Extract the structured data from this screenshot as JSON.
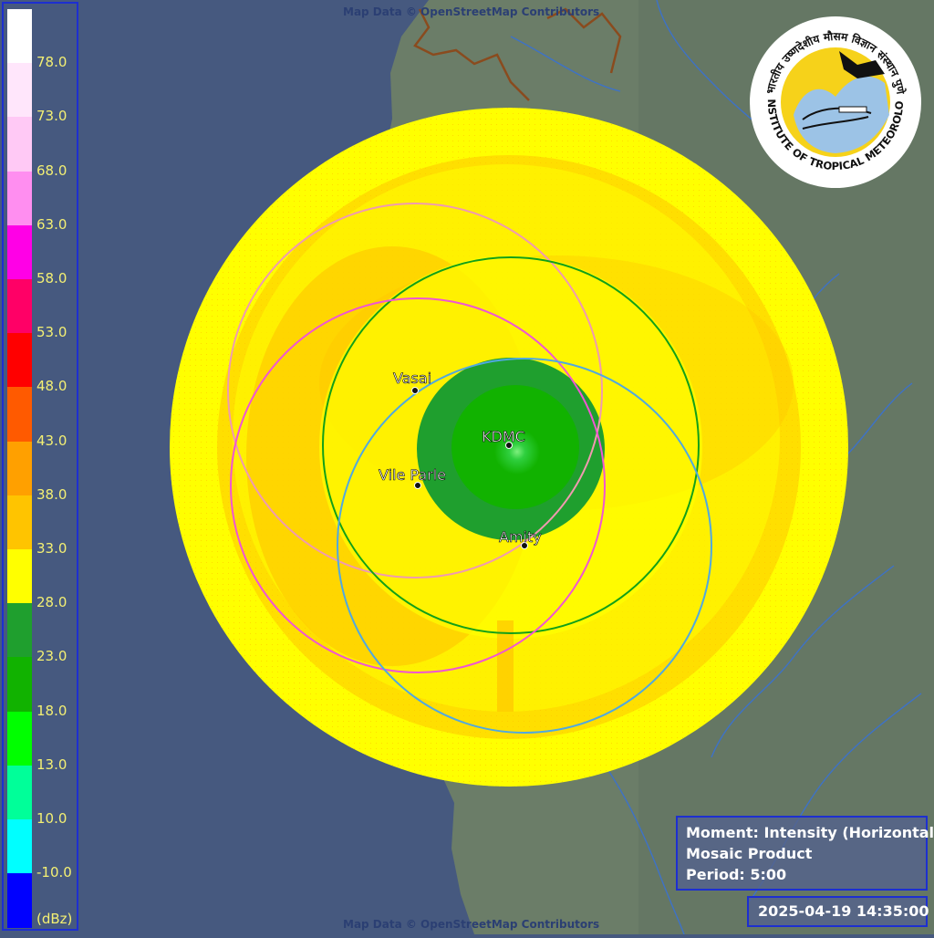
{
  "map": {
    "credit_top": "Map Data © OpenStreetMap Contributors",
    "credit_bottom": "Map Data © OpenStreetMap Contributors",
    "colors": {
      "sea": "#46597f",
      "land": "#6b7d68",
      "river": "#3d72c8",
      "border": "#8a4b1e"
    }
  },
  "legend": {
    "unit": "(dBz)",
    "ticks": [
      "78.0",
      "73.0",
      "68.0",
      "63.0",
      "58.0",
      "53.0",
      "48.0",
      "43.0",
      "38.0",
      "33.0",
      "28.0",
      "23.0",
      "18.0",
      "13.0",
      "10.0",
      "-10.0"
    ],
    "colors": [
      "#ffffff",
      "#ffe6fb",
      "#ffc9f5",
      "#ff8ef0",
      "#ff00e6",
      "#ff0066",
      "#ff0000",
      "#ff5a00",
      "#ffa000",
      "#ffc400",
      "#ffff00",
      "#1f9f2e",
      "#11b200",
      "#00ff00",
      "#00ff99",
      "#00ffff",
      "#0000ff"
    ]
  },
  "radars": [
    {
      "name": "Vasai",
      "ring_color": "#f09ab0"
    },
    {
      "name": "KDMC",
      "ring_color": "#12a018"
    },
    {
      "name": "Vile Parle",
      "ring_color": "#f055d4"
    },
    {
      "name": "Amity",
      "ring_color": "#50a8e0"
    }
  ],
  "logo": {
    "icon": "iitm-logo",
    "text_top": "भारतीय उष्णदेशीय मौसम विज्ञान संस्थान पुणे",
    "text_bottom": "INDIAN INSTITUTE OF TROPICAL METEOROLOGY PUNE"
  },
  "info": {
    "moment": "Moment: Intensity (Horizontal)",
    "product": "Mosaic Product",
    "period": "Period: 5:00"
  },
  "timestamp": "2025-04-19 14:35:00"
}
